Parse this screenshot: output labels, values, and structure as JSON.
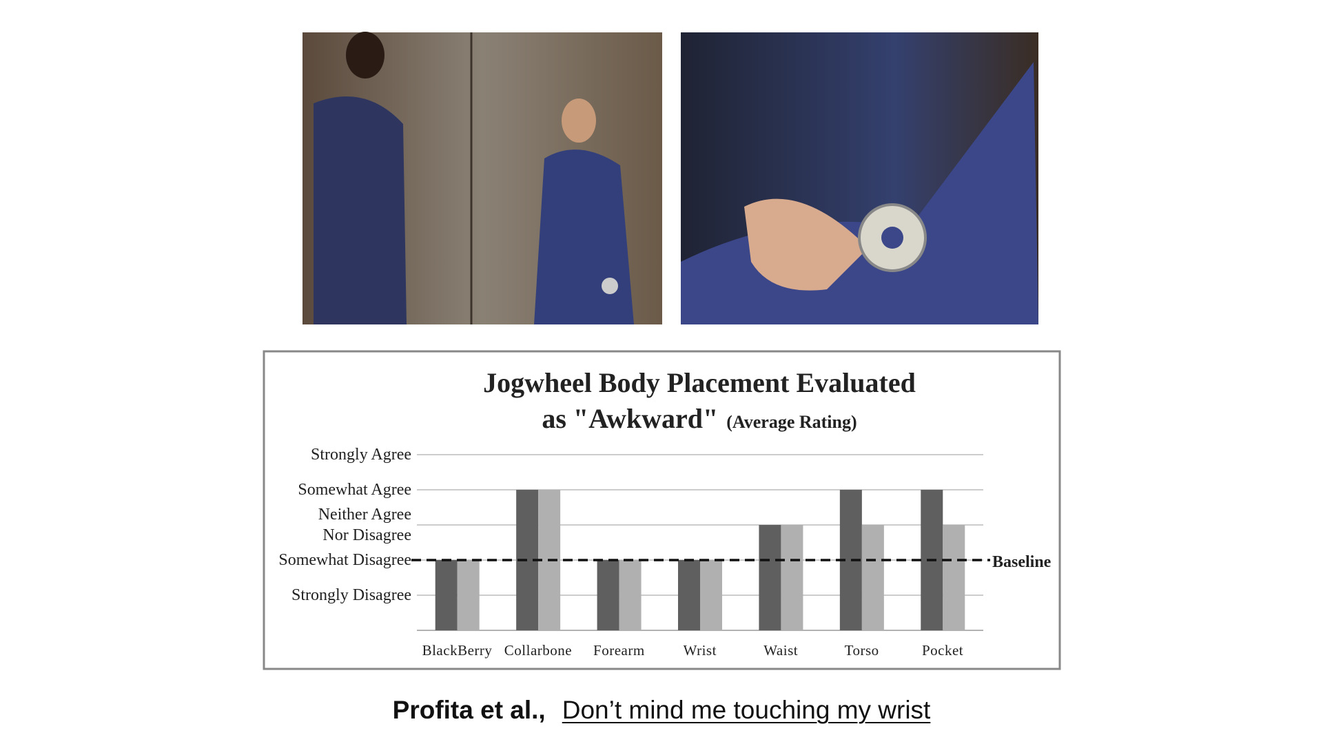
{
  "chart_data": {
    "type": "bar",
    "title": "Jogwheel Body Placement Evaluated\nas \"Awkward\"",
    "subtitle": "(Average Rating)",
    "categories": [
      "BlackBerry",
      "Collarbone",
      "Forearm",
      "Wrist",
      "Waist",
      "Torso",
      "Pocket"
    ],
    "series": [
      {
        "color": "#5f5f5f",
        "values": [
          2,
          4,
          2,
          2,
          3,
          4,
          4
        ]
      },
      {
        "color": "#b0b0b0",
        "values": [
          2,
          4,
          2,
          2,
          3,
          3,
          3
        ]
      }
    ],
    "ylim": [
      0,
      5
    ],
    "yticks": [
      {
        "value": 1,
        "label": "Strongly Disagree"
      },
      {
        "value": 2,
        "label": "Somewhat Disagree"
      },
      {
        "value": 3,
        "label": "Neither Agree\nNor Disagree"
      },
      {
        "value": 4,
        "label": "Somewhat Agree"
      },
      {
        "value": 5,
        "label": "Strongly Agree"
      }
    ],
    "grid": true,
    "baseline": {
      "value": 2,
      "label": "Baseline"
    }
  },
  "caption": {
    "authors": "Profita et al.,",
    "paper": "Don’t mind me touching my wrist"
  }
}
